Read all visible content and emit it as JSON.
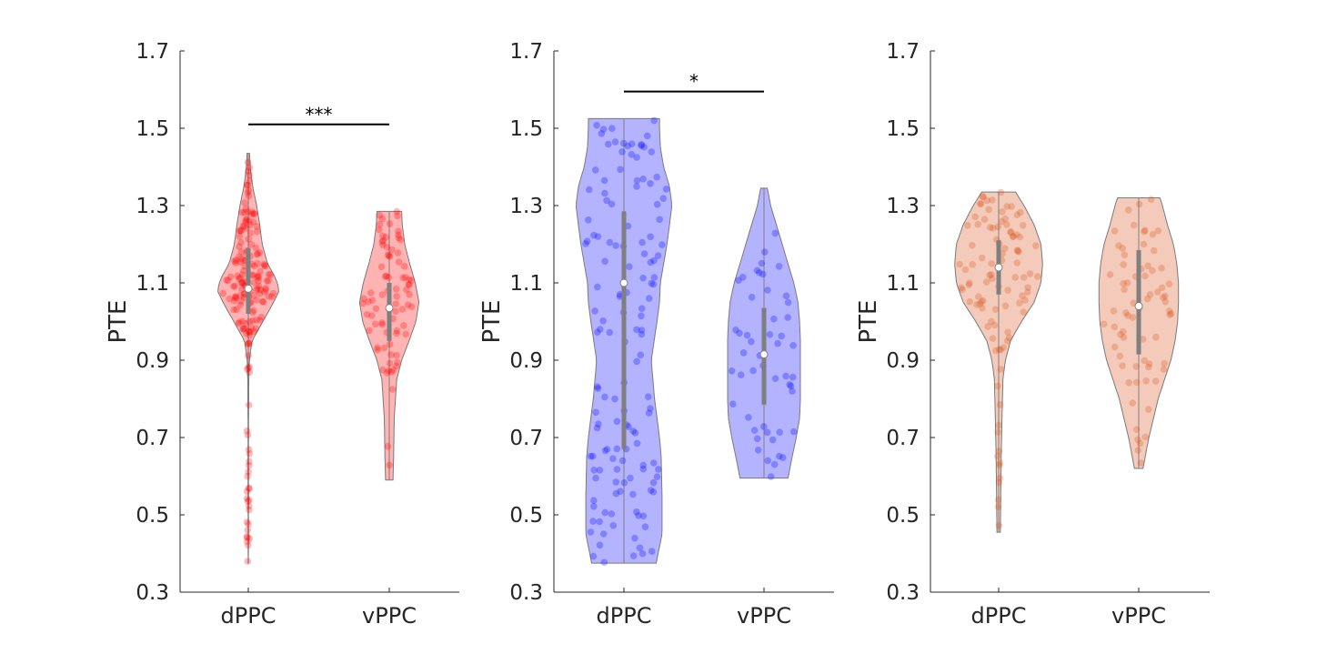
{
  "chart_data": [
    {
      "type": "violin",
      "ylabel": "PTE",
      "ylim": [
        0.3,
        1.7
      ],
      "yticks": [
        "0.3",
        "0.5",
        "0.7",
        "0.9",
        "1.1",
        "1.3",
        "1.5",
        "1.7"
      ],
      "categories": [
        "dPPC",
        "vPPC"
      ],
      "color": "#ff0000",
      "significance": {
        "pair": [
          "dPPC",
          "vPPC"
        ],
        "label": "***",
        "y": 1.51
      },
      "groups": [
        {
          "category": "dPPC",
          "min": 0.375,
          "max": 1.435,
          "median": 1.085,
          "q1": 1.02,
          "q3": 1.19,
          "n": 180,
          "density": [
            [
              0.375,
              0.004
            ],
            [
              0.45,
              0.006
            ],
            [
              0.55,
              0.008
            ],
            [
              0.65,
              0.01
            ],
            [
              0.75,
              0.01
            ],
            [
              0.85,
              0.018
            ],
            [
              0.9,
              0.035
            ],
            [
              0.95,
              0.12
            ],
            [
              1.0,
              0.47
            ],
            [
              1.05,
              0.82
            ],
            [
              1.08,
              1.0
            ],
            [
              1.11,
              0.9
            ],
            [
              1.15,
              0.62
            ],
            [
              1.2,
              0.45
            ],
            [
              1.25,
              0.37
            ],
            [
              1.3,
              0.27
            ],
            [
              1.35,
              0.14
            ],
            [
              1.4,
              0.06
            ],
            [
              1.435,
              0.04
            ]
          ]
        },
        {
          "category": "vPPC",
          "min": 0.59,
          "max": 1.285,
          "median": 1.035,
          "q1": 0.95,
          "q3": 1.1,
          "n": 80,
          "density": [
            [
              0.59,
              0.12
            ],
            [
              0.65,
              0.14
            ],
            [
              0.7,
              0.15
            ],
            [
              0.75,
              0.16
            ],
            [
              0.8,
              0.2
            ],
            [
              0.85,
              0.24
            ],
            [
              0.9,
              0.4
            ],
            [
              0.95,
              0.64
            ],
            [
              1.0,
              0.86
            ],
            [
              1.05,
              0.96
            ],
            [
              1.1,
              0.84
            ],
            [
              1.15,
              0.66
            ],
            [
              1.2,
              0.5
            ],
            [
              1.25,
              0.42
            ],
            [
              1.285,
              0.4
            ]
          ]
        }
      ]
    },
    {
      "type": "violin",
      "ylabel": "PTE",
      "ylim": [
        0.3,
        1.7
      ],
      "yticks": [
        "0.3",
        "0.5",
        "0.7",
        "0.9",
        "1.1",
        "1.3",
        "1.5",
        "1.7"
      ],
      "categories": [
        "dPPC",
        "vPPC"
      ],
      "color": "#0000ff",
      "significance": {
        "pair": [
          "dPPC",
          "vPPC"
        ],
        "label": "*",
        "y": 1.595
      },
      "groups": [
        {
          "category": "dPPC",
          "min": 0.375,
          "max": 1.525,
          "median": 1.1,
          "q1": 0.67,
          "q3": 1.285,
          "n": 140,
          "density": [
            [
              0.375,
              0.39
            ],
            [
              0.45,
              0.46
            ],
            [
              0.55,
              0.46
            ],
            [
              0.65,
              0.45
            ],
            [
              0.7,
              0.43
            ],
            [
              0.8,
              0.37
            ],
            [
              0.9,
              0.33
            ],
            [
              1.0,
              0.4
            ],
            [
              1.05,
              0.43
            ],
            [
              1.1,
              0.44
            ],
            [
              1.2,
              0.52
            ],
            [
              1.3,
              0.58
            ],
            [
              1.35,
              0.55
            ],
            [
              1.4,
              0.48
            ],
            [
              1.45,
              0.44
            ],
            [
              1.5,
              0.43
            ],
            [
              1.525,
              0.43
            ]
          ]
        },
        {
          "category": "vPPC",
          "min": 0.595,
          "max": 1.345,
          "median": 0.915,
          "q1": 0.785,
          "q3": 1.035,
          "n": 50,
          "density": [
            [
              0.595,
              0.29
            ],
            [
              0.65,
              0.34
            ],
            [
              0.7,
              0.39
            ],
            [
              0.75,
              0.43
            ],
            [
              0.8,
              0.44
            ],
            [
              0.85,
              0.44
            ],
            [
              0.9,
              0.44
            ],
            [
              0.95,
              0.44
            ],
            [
              1.0,
              0.43
            ],
            [
              1.05,
              0.41
            ],
            [
              1.1,
              0.36
            ],
            [
              1.15,
              0.29
            ],
            [
              1.2,
              0.22
            ],
            [
              1.25,
              0.15
            ],
            [
              1.3,
              0.08
            ],
            [
              1.345,
              0.04
            ]
          ]
        }
      ]
    },
    {
      "type": "violin",
      "ylabel": "PTE",
      "ylim": [
        0.3,
        1.7
      ],
      "yticks": [
        "0.3",
        "0.5",
        "0.7",
        "0.9",
        "1.1",
        "1.3",
        "1.5",
        "1.7"
      ],
      "categories": [
        "dPPC",
        "vPPC"
      ],
      "color": "#d95319",
      "groups": [
        {
          "category": "dPPC",
          "min": 0.455,
          "max": 1.335,
          "median": 1.14,
          "q1": 1.07,
          "q3": 1.21,
          "n": 100,
          "density": [
            [
              0.455,
              0.02
            ],
            [
              0.55,
              0.025
            ],
            [
              0.65,
              0.03
            ],
            [
              0.75,
              0.04
            ],
            [
              0.85,
              0.05
            ],
            [
              0.9,
              0.08
            ],
            [
              0.95,
              0.14
            ],
            [
              1.0,
              0.27
            ],
            [
              1.05,
              0.42
            ],
            [
              1.1,
              0.5
            ],
            [
              1.15,
              0.52
            ],
            [
              1.2,
              0.5
            ],
            [
              1.25,
              0.42
            ],
            [
              1.3,
              0.3
            ],
            [
              1.335,
              0.2
            ]
          ]
        },
        {
          "category": "vPPC",
          "min": 0.62,
          "max": 1.32,
          "median": 1.04,
          "q1": 0.915,
          "q3": 1.185,
          "n": 70,
          "density": [
            [
              0.62,
              0.05
            ],
            [
              0.7,
              0.12
            ],
            [
              0.8,
              0.23
            ],
            [
              0.9,
              0.38
            ],
            [
              0.95,
              0.43
            ],
            [
              1.0,
              0.46
            ],
            [
              1.05,
              0.47
            ],
            [
              1.1,
              0.47
            ],
            [
              1.15,
              0.45
            ],
            [
              1.2,
              0.41
            ],
            [
              1.25,
              0.34
            ],
            [
              1.3,
              0.28
            ],
            [
              1.32,
              0.25
            ]
          ]
        }
      ]
    }
  ]
}
